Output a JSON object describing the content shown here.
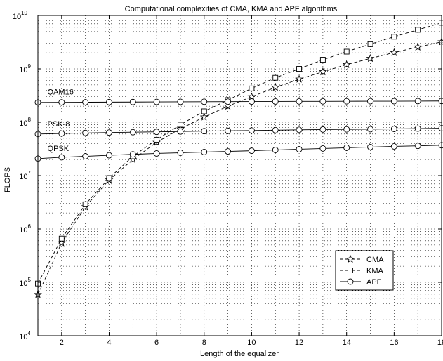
{
  "chart_data": {
    "type": "line",
    "title": "Computational complexities of CMA, KMA and APF algorithms",
    "xlabel": "Length of the equalizer",
    "ylabel": "FLOPS",
    "xlim": [
      1,
      18
    ],
    "ylim": [
      10000,
      10000000000
    ],
    "yscale": "log",
    "grid": true,
    "legend_position": "lower-right",
    "x_ticks": [
      2,
      4,
      6,
      8,
      10,
      12,
      14,
      16,
      18
    ],
    "x_tick_labels": [
      "2",
      "4",
      "6",
      "8",
      "10",
      "12",
      "14",
      "16",
      "18"
    ],
    "y_ticks": [
      4,
      5,
      6,
      7,
      8,
      9,
      10
    ],
    "y_tick_labels": [
      {
        "base": "10",
        "exp": "4"
      },
      {
        "base": "10",
        "exp": "5"
      },
      {
        "base": "10",
        "exp": "6"
      },
      {
        "base": "10",
        "exp": "7"
      },
      {
        "base": "10",
        "exp": "8"
      },
      {
        "base": "10",
        "exp": "9"
      },
      {
        "base": "10",
        "exp": "10"
      }
    ],
    "x": [
      1,
      2,
      3,
      4,
      5,
      6,
      7,
      8,
      9,
      10,
      11,
      12,
      13,
      14,
      15,
      16,
      17,
      18
    ],
    "series": [
      {
        "name": "CMA",
        "marker": "star",
        "dash": "dashed",
        "values": [
          59000,
          550000,
          2600000,
          8300000,
          20000000,
          42000000,
          75000000,
          125000000,
          200000000,
          300000000,
          450000000,
          640000000,
          880000000,
          1200000000,
          1570000000,
          2020000000,
          2560000000,
          3200000000
        ]
      },
      {
        "name": "KMA",
        "marker": "square",
        "dash": "dashed",
        "values": [
          95000,
          660000,
          2900000,
          9000000,
          23000000,
          47000000,
          90000000,
          160000000,
          260000000,
          430000000,
          680000000,
          1000000000,
          1480000000,
          2100000000,
          2900000000,
          4000000000,
          5400000000,
          7300000000
        ]
      },
      {
        "name": "APF",
        "marker": "circle",
        "dash": "solid",
        "group": "QPSK",
        "values": [
          20800000,
          22000000,
          23000000,
          24000000,
          25000000,
          26000000,
          26800000,
          27600000,
          28400000,
          29200000,
          30200000,
          31200000,
          32200000,
          33200000,
          34200000,
          35200000,
          36000000,
          37000000
        ]
      },
      {
        "name": "APF",
        "marker": "circle",
        "dash": "solid",
        "group": "PSK-8",
        "values": [
          60000000,
          61500000,
          63000000,
          64000000,
          65000000,
          66000000,
          67000000,
          68000000,
          69000000,
          70000000,
          71000000,
          72000000,
          73000000,
          73500000,
          74000000,
          75000000,
          76000000,
          77000000
        ]
      },
      {
        "name": "APF",
        "marker": "circle",
        "dash": "solid",
        "group": "QAM16",
        "values": [
          235000000,
          236000000,
          237000000,
          238000000,
          239000000,
          240000000,
          241000000,
          242000000,
          243000000,
          244000000,
          245000000,
          245500000,
          246000000,
          247000000,
          247500000,
          248000000,
          249000000,
          250000000
        ]
      }
    ],
    "annotations": [
      {
        "text": "QAM16",
        "x": 1.4,
        "y": 330000000
      },
      {
        "text": "PSK-8",
        "x": 1.4,
        "y": 83000000
      },
      {
        "text": "QPSK",
        "x": 1.4,
        "y": 29000000
      }
    ],
    "legend": [
      "CMA",
      "KMA",
      "APF"
    ]
  }
}
